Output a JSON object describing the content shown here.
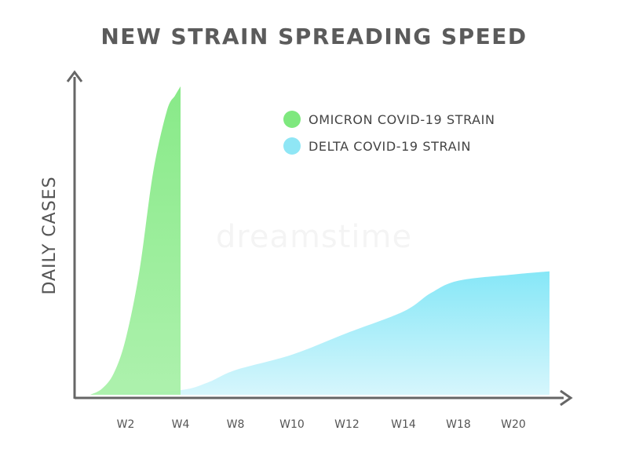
{
  "chart_data": {
    "type": "area",
    "title": "NEW STRAIN SPREADING SPEED",
    "xlabel": "",
    "ylabel": "DAILY CASES",
    "categories": [
      "W2",
      "W4",
      "W8",
      "W10",
      "W12",
      "W14",
      "W18",
      "W20"
    ],
    "ylim": [
      0,
      100
    ],
    "grid": false,
    "legend": "top-right",
    "series": [
      {
        "name": "OMICRON COVID-19 STRAIN",
        "color": "#7ee87e",
        "x": [
          0.5,
          1.0,
          1.5,
          2.0,
          2.5,
          3.0,
          3.5,
          3.8,
          4.0
        ],
        "values": [
          0,
          2,
          7,
          18,
          40,
          72,
          92,
          97,
          100
        ]
      },
      {
        "name": "DELTA COVID-19 STRAIN",
        "color": "#8fe6f5",
        "x": [
          0.5,
          2,
          4,
          6,
          8,
          10,
          12,
          14,
          16,
          18,
          20,
          21
        ],
        "values": [
          0,
          0.5,
          1.5,
          4,
          8,
          13,
          20,
          27,
          33,
          37,
          39,
          40
        ]
      }
    ]
  },
  "watermark": "dreamstime"
}
